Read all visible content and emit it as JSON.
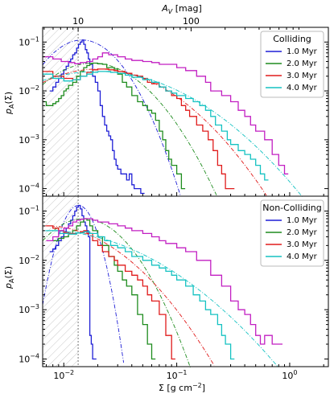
{
  "chart_data": [
    {
      "type": "line",
      "panel": "top",
      "step": true,
      "xscale": "log",
      "yscale": "log",
      "xlim": [
        0.0065,
        2.2
      ],
      "ylim": [
        7e-05,
        0.2
      ],
      "ylabel": "p_A(Σ)",
      "top_axis_label": "A_V [mag]",
      "top_ticks": [
        {
          "label": "10",
          "x": 0.0134
        },
        {
          "label": "100",
          "x": 0.134
        }
      ],
      "threshold_x": 0.0134,
      "legend": {
        "title": "Colliding",
        "placement": "top-right"
      },
      "series": [
        {
          "name": "1.0 Myr",
          "color": "#1f1fd6",
          "x": [
            0.0075,
            0.008,
            0.0085,
            0.009,
            0.0095,
            0.01,
            0.0105,
            0.011,
            0.0115,
            0.012,
            0.0125,
            0.013,
            0.0135,
            0.014,
            0.0145,
            0.015,
            0.0155,
            0.016,
            0.0165,
            0.017,
            0.018,
            0.019,
            0.02,
            0.021,
            0.022,
            0.023,
            0.024,
            0.025,
            0.026,
            0.027,
            0.028,
            0.029,
            0.03,
            0.032,
            0.034,
            0.036,
            0.038,
            0.04,
            0.042,
            0.045,
            0.048
          ],
          "y": [
            0.01,
            0.012,
            0.015,
            0.018,
            0.022,
            0.027,
            0.032,
            0.04,
            0.045,
            0.055,
            0.06,
            0.075,
            0.09,
            0.1,
            0.11,
            0.09,
            0.07,
            0.06,
            0.045,
            0.035,
            0.02,
            0.015,
            0.01,
            0.005,
            0.003,
            0.002,
            0.0015,
            0.0012,
            0.001,
            0.0006,
            0.0004,
            0.0003,
            0.00025,
            0.0002,
            0.0002,
            0.00015,
            0.0002,
            0.00012,
            0.0001,
            0.0001,
            8e-05
          ]
        },
        {
          "name": "2.0 Myr",
          "color": "#1e8c1e",
          "x": [
            0.0065,
            0.007,
            0.0075,
            0.008,
            0.0085,
            0.009,
            0.0095,
            0.01,
            0.0105,
            0.011,
            0.012,
            0.013,
            0.014,
            0.015,
            0.016,
            0.017,
            0.018,
            0.02,
            0.022,
            0.024,
            0.026,
            0.028,
            0.03,
            0.033,
            0.036,
            0.04,
            0.045,
            0.05,
            0.055,
            0.06,
            0.065,
            0.07,
            0.075,
            0.08,
            0.085,
            0.09,
            0.1,
            0.11
          ],
          "y": [
            0.006,
            0.005,
            0.005,
            0.0055,
            0.006,
            0.007,
            0.008,
            0.01,
            0.011,
            0.013,
            0.015,
            0.02,
            0.025,
            0.03,
            0.033,
            0.036,
            0.037,
            0.036,
            0.035,
            0.03,
            0.03,
            0.028,
            0.022,
            0.015,
            0.012,
            0.008,
            0.006,
            0.005,
            0.004,
            0.0035,
            0.0025,
            0.0015,
            0.001,
            0.0006,
            0.0004,
            0.0003,
            0.0002,
            0.0001
          ]
        },
        {
          "name": "3.0 Myr",
          "color": "#e01b1b",
          "x": [
            0.0065,
            0.008,
            0.01,
            0.012,
            0.014,
            0.016,
            0.018,
            0.02,
            0.022,
            0.025,
            0.028,
            0.03,
            0.035,
            0.04,
            0.045,
            0.05,
            0.055,
            0.06,
            0.07,
            0.08,
            0.09,
            0.1,
            0.11,
            0.12,
            0.13,
            0.15,
            0.17,
            0.19,
            0.21,
            0.23,
            0.25,
            0.27,
            0.3
          ],
          "y": [
            0.025,
            0.02,
            0.018,
            0.017,
            0.02,
            0.024,
            0.027,
            0.028,
            0.028,
            0.027,
            0.026,
            0.025,
            0.023,
            0.021,
            0.02,
            0.018,
            0.015,
            0.014,
            0.012,
            0.01,
            0.008,
            0.007,
            0.005,
            0.004,
            0.003,
            0.002,
            0.0015,
            0.001,
            0.0006,
            0.0003,
            0.0002,
            0.0001,
            0.0001
          ]
        },
        {
          "name": "4.0 Myr",
          "color": "#15c2c2",
          "x": [
            0.0065,
            0.008,
            0.01,
            0.012,
            0.014,
            0.016,
            0.018,
            0.02,
            0.023,
            0.026,
            0.03,
            0.035,
            0.04,
            0.05,
            0.06,
            0.07,
            0.08,
            0.09,
            0.1,
            0.12,
            0.14,
            0.16,
            0.18,
            0.2,
            0.22,
            0.25,
            0.28,
            0.3,
            0.35,
            0.4,
            0.45,
            0.5,
            0.55,
            0.6
          ],
          "y": [
            0.022,
            0.018,
            0.016,
            0.017,
            0.02,
            0.022,
            0.024,
            0.025,
            0.025,
            0.024,
            0.023,
            0.021,
            0.019,
            0.017,
            0.015,
            0.012,
            0.01,
            0.009,
            0.008,
            0.007,
            0.006,
            0.005,
            0.004,
            0.003,
            0.002,
            0.0015,
            0.001,
            0.0008,
            0.0006,
            0.0005,
            0.0004,
            0.0003,
            0.0002,
            0.00015
          ]
        },
        {
          "name": "",
          "color": "#c21fc2",
          "x": [
            0.0065,
            0.008,
            0.0095,
            0.011,
            0.0125,
            0.014,
            0.016,
            0.018,
            0.02,
            0.022,
            0.025,
            0.03,
            0.035,
            0.04,
            0.05,
            0.06,
            0.07,
            0.08,
            0.1,
            0.12,
            0.15,
            0.18,
            0.2,
            0.25,
            0.3,
            0.35,
            0.4,
            0.45,
            0.5,
            0.6,
            0.7,
            0.8,
            0.9
          ],
          "y": [
            0.05,
            0.045,
            0.04,
            0.038,
            0.036,
            0.038,
            0.04,
            0.045,
            0.05,
            0.06,
            0.055,
            0.05,
            0.045,
            0.042,
            0.04,
            0.038,
            0.035,
            0.035,
            0.03,
            0.026,
            0.02,
            0.015,
            0.01,
            0.008,
            0.006,
            0.004,
            0.003,
            0.002,
            0.0015,
            0.001,
            0.0005,
            0.0003,
            0.0002
          ]
        }
      ]
    },
    {
      "type": "line",
      "panel": "bottom",
      "step": true,
      "xscale": "log",
      "yscale": "log",
      "xlim": [
        0.0065,
        2.2
      ],
      "ylim": [
        7e-05,
        0.2
      ],
      "xlabel": "Σ [g cm⁻²]",
      "ylabel": "p_A(Σ)",
      "xticks": [
        {
          "label": "10⁻²",
          "x": 0.01
        },
        {
          "label": "10⁻¹",
          "x": 0.1
        },
        {
          "label": "10⁰",
          "x": 1
        }
      ],
      "threshold_x": 0.0134,
      "legend": {
        "title": "Non-Colliding",
        "placement": "top-right"
      },
      "series": [
        {
          "name": "1.0 Myr",
          "color": "#1f1fd6",
          "x": [
            0.0075,
            0.008,
            0.0085,
            0.009,
            0.0095,
            0.01,
            0.0105,
            0.011,
            0.0115,
            0.012,
            0.0125,
            0.013,
            0.0135,
            0.014,
            0.0145,
            0.015,
            0.0155,
            0.016,
            0.0165,
            0.017,
            0.0175,
            0.018
          ],
          "y": [
            0.015,
            0.017,
            0.02,
            0.025,
            0.03,
            0.038,
            0.045,
            0.055,
            0.065,
            0.08,
            0.1,
            0.12,
            0.13,
            0.11,
            0.08,
            0.06,
            0.05,
            0.04,
            0.03,
            0.0003,
            0.0002,
            0.0001
          ]
        },
        {
          "name": "2.0 Myr",
          "color": "#1e8c1e",
          "x": [
            0.008,
            0.009,
            0.01,
            0.011,
            0.012,
            0.013,
            0.014,
            0.015,
            0.016,
            0.017,
            0.018,
            0.02,
            0.022,
            0.025,
            0.028,
            0.03,
            0.033,
            0.036,
            0.04,
            0.045,
            0.05,
            0.055,
            0.06
          ],
          "y": [
            0.025,
            0.028,
            0.03,
            0.035,
            0.04,
            0.05,
            0.06,
            0.07,
            0.065,
            0.05,
            0.04,
            0.03,
            0.02,
            0.012,
            0.008,
            0.006,
            0.004,
            0.003,
            0.002,
            0.0008,
            0.0005,
            0.0002,
            0.0001
          ]
        },
        {
          "name": "3.0 Myr",
          "color": "#e01b1b",
          "x": [
            0.007,
            0.008,
            0.009,
            0.01,
            0.011,
            0.012,
            0.013,
            0.014,
            0.015,
            0.016,
            0.018,
            0.02,
            0.022,
            0.025,
            0.028,
            0.03,
            0.035,
            0.04,
            0.045,
            0.05,
            0.055,
            0.06,
            0.07,
            0.08,
            0.09
          ],
          "y": [
            0.05,
            0.045,
            0.04,
            0.037,
            0.035,
            0.035,
            0.036,
            0.038,
            0.04,
            0.035,
            0.025,
            0.02,
            0.015,
            0.012,
            0.01,
            0.008,
            0.006,
            0.005,
            0.004,
            0.003,
            0.002,
            0.0015,
            0.0008,
            0.0003,
            0.0001
          ]
        },
        {
          "name": "4.0 Myr",
          "color": "#15c2c2",
          "x": [
            0.007,
            0.009,
            0.011,
            0.013,
            0.015,
            0.017,
            0.02,
            0.023,
            0.026,
            0.03,
            0.035,
            0.04,
            0.05,
            0.06,
            0.07,
            0.08,
            0.09,
            0.1,
            0.12,
            0.14,
            0.16,
            0.18,
            0.2,
            0.23,
            0.25,
            0.27,
            0.3
          ],
          "y": [
            0.04,
            0.035,
            0.034,
            0.036,
            0.038,
            0.035,
            0.03,
            0.025,
            0.02,
            0.018,
            0.015,
            0.012,
            0.01,
            0.008,
            0.007,
            0.006,
            0.005,
            0.004,
            0.003,
            0.002,
            0.0015,
            0.001,
            0.0008,
            0.0005,
            0.0003,
            0.0002,
            0.0001
          ]
        },
        {
          "name": "",
          "color": "#c21fc2",
          "x": [
            0.007,
            0.008,
            0.009,
            0.01,
            0.011,
            0.012,
            0.013,
            0.014,
            0.015,
            0.016,
            0.018,
            0.02,
            0.022,
            0.025,
            0.03,
            0.035,
            0.04,
            0.05,
            0.06,
            0.07,
            0.08,
            0.1,
            0.12,
            0.15,
            0.2,
            0.25,
            0.3,
            0.35,
            0.4,
            0.45,
            0.5,
            0.55,
            0.6,
            0.7,
            0.8
          ],
          "y": [
            0.025,
            0.03,
            0.04,
            0.045,
            0.05,
            0.06,
            0.065,
            0.068,
            0.07,
            0.07,
            0.065,
            0.06,
            0.06,
            0.055,
            0.05,
            0.045,
            0.04,
            0.035,
            0.03,
            0.025,
            0.022,
            0.018,
            0.015,
            0.01,
            0.005,
            0.003,
            0.0015,
            0.001,
            0.0008,
            0.0005,
            0.0003,
            0.0002,
            0.0003,
            0.0002,
            0.0002
          ]
        }
      ]
    }
  ]
}
